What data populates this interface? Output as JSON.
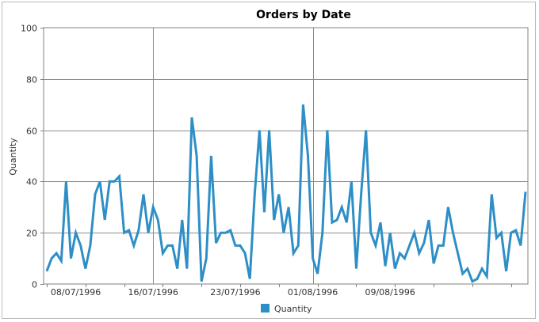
{
  "chart_data": {
    "type": "line",
    "title": "Orders by Date",
    "xlabel": "",
    "ylabel": "Quantity",
    "ylim": [
      0,
      100
    ],
    "yticks": [
      0,
      20,
      40,
      60,
      80,
      100
    ],
    "x_tick_labels": [
      {
        "index": 6,
        "label": "08/07/1996"
      },
      {
        "index": 22,
        "label": "16/07/1996"
      },
      {
        "index": 39,
        "label": "23/07/1996"
      },
      {
        "index": 55,
        "label": "01/08/1996"
      },
      {
        "index": 71,
        "label": "09/08/1996"
      }
    ],
    "grid": true,
    "legend_position": "bottom",
    "series": [
      {
        "name": "Quantity",
        "color": "#2e8fc6",
        "values": [
          5,
          10,
          12,
          9,
          40,
          10,
          20,
          15,
          6,
          15,
          35,
          40,
          25,
          40,
          40,
          42,
          20,
          21,
          15,
          21,
          35,
          20,
          30,
          25,
          12,
          15,
          15,
          6,
          25,
          6,
          65,
          50,
          1,
          10,
          50,
          16,
          20,
          20,
          21,
          15,
          15,
          12,
          2,
          35,
          60,
          28,
          60,
          25,
          35,
          20,
          30,
          12,
          15,
          70,
          50,
          10,
          4,
          20,
          60,
          24,
          25,
          30,
          24,
          40,
          6,
          35,
          60,
          20,
          15,
          24,
          7,
          20,
          6,
          12,
          10,
          15,
          20,
          12,
          16,
          25,
          8,
          15,
          15,
          30,
          20,
          12,
          4,
          6,
          1,
          2,
          6,
          3,
          35,
          18,
          20,
          5,
          20,
          21,
          15,
          36
        ]
      }
    ]
  },
  "legend": {
    "label": "Quantity"
  }
}
